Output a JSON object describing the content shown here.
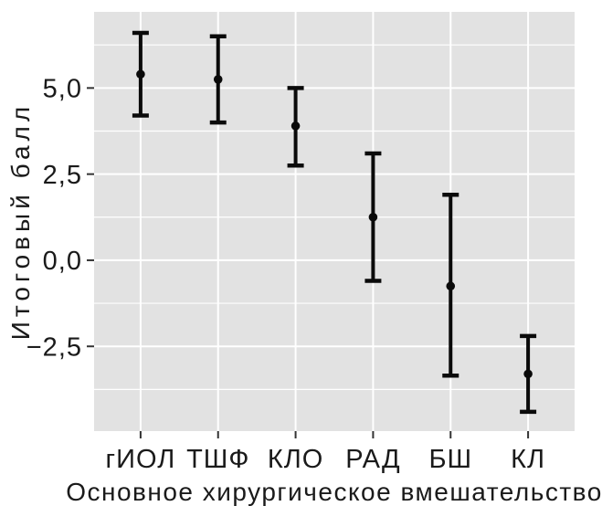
{
  "chart_data": {
    "type": "pointrange",
    "title": "",
    "xlabel": "Основное хирургическое вмешательство",
    "ylabel": "Итоговый балл",
    "categories": [
      "гИОЛ",
      "ТШФ",
      "КЛО",
      "РАД",
      "БШ",
      "КЛ"
    ],
    "series": [
      {
        "means": [
          5.4,
          5.25,
          3.9,
          1.25,
          -0.75,
          -3.3
        ],
        "lower": [
          4.2,
          4.0,
          2.75,
          -0.6,
          -3.35,
          -4.4
        ],
        "upper": [
          6.6,
          6.5,
          5.0,
          3.1,
          1.9,
          -2.2
        ]
      }
    ],
    "yticks": [
      {
        "value": 5.0,
        "label": "5,0"
      },
      {
        "value": 2.5,
        "label": "2,5"
      },
      {
        "value": 0.0,
        "label": "0,0"
      },
      {
        "value": -2.5,
        "label": "−2,5"
      }
    ],
    "minor_gridlines": [
      6.25,
      3.75,
      1.25,
      -1.25,
      -3.75
    ],
    "ylim": [
      -4.96,
      7.21
    ],
    "legend_position": "none",
    "grid": "horizontal major+minor, vertical major per category",
    "colors": {
      "panel_bg": "#e2e2e2",
      "grid": "#ffffff",
      "data": "#0a0a0a",
      "text": "#1a1a1a",
      "tick": "#333333"
    }
  }
}
